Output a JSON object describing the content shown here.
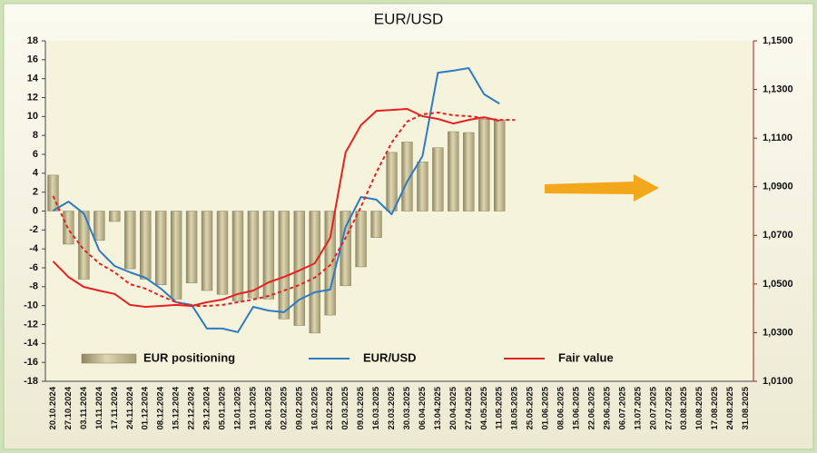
{
  "chart_data": {
    "type": "combo",
    "title": "EUR/USD",
    "categories": [
      "20.10.2024",
      "27.10.2024",
      "03.11.2024",
      "10.11.2024",
      "17.11.2024",
      "24.11.2024",
      "01.12.2024",
      "08.12.2024",
      "15.12.2024",
      "22.12.2024",
      "29.12.2024",
      "05.01.2025",
      "12.01.2025",
      "19.01.2025",
      "26.01.2025",
      "02.02.2025",
      "09.02.2025",
      "16.02.2025",
      "23.02.2025",
      "02.03.2025",
      "09.03.2025",
      "16.03.2025",
      "23.03.2025",
      "30.03.2025",
      "06.04.2025",
      "13.04.2025",
      "20.04.2025",
      "27.04.2025",
      "04.05.2025",
      "11.05.2025",
      "18.05.2025",
      "25.05.2025",
      "01.06.2025",
      "08.06.2025",
      "15.06.2025",
      "22.06.2025",
      "29.06.2025",
      "06.07.2025",
      "13.07.2025",
      "20.07.2025",
      "27.07.2025",
      "03.08.2025",
      "10.08.2025",
      "17.08.2025",
      "24.08.2025",
      "31.08.2025"
    ],
    "series": [
      {
        "name": "EUR positioning",
        "type": "bar",
        "color": "#c9c196",
        "values": [
          3.8,
          -3.5,
          -7.2,
          -3.1,
          -1.1,
          -6.1,
          -7.2,
          -7.8,
          -9.3,
          -7.6,
          -8.4,
          -8.8,
          -9.5,
          -9.2,
          -9.3,
          -11.4,
          -12.1,
          -12.9,
          -11.0,
          -7.9,
          -5.9,
          -2.8,
          6.2,
          7.3,
          5.2,
          6.7,
          8.4,
          8.3,
          9.7,
          9.6,
          null,
          null,
          null,
          null,
          null,
          null,
          null,
          null,
          null,
          null,
          null,
          null,
          null,
          null,
          null,
          null
        ]
      },
      {
        "name": "EUR/USD",
        "type": "line",
        "axis": "y2",
        "color": "#2e7bc4",
        "values": [
          1.0802,
          1.0839,
          1.079,
          1.0638,
          1.0574,
          1.0548,
          1.0526,
          1.0481,
          1.0425,
          1.0414,
          1.0317,
          1.0317,
          1.0302,
          1.0406,
          1.0391,
          1.0384,
          1.0436,
          1.0466,
          1.0477,
          1.0735,
          1.0858,
          1.0847,
          1.0787,
          1.0921,
          1.1026,
          1.1369,
          1.1377,
          1.1388,
          1.128,
          1.1242,
          null,
          null,
          null,
          null,
          null,
          null,
          null,
          null,
          null,
          null,
          null,
          null,
          null,
          null,
          null,
          null
        ]
      },
      {
        "name": "Fair value",
        "type": "line",
        "axis": "y2",
        "color": "#e52222",
        "values": [
          1.0593,
          1.0529,
          1.0488,
          1.0473,
          1.0459,
          1.0414,
          1.0406,
          1.041,
          1.0414,
          1.041,
          1.0425,
          1.0436,
          1.0459,
          1.0473,
          1.0507,
          1.0529,
          1.0556,
          1.0585,
          1.069,
          1.1041,
          1.1153,
          1.1212,
          1.1216,
          1.122,
          1.119,
          1.1179,
          1.116,
          1.1175,
          1.1186,
          1.1171,
          null,
          null,
          null,
          null,
          null,
          null,
          null,
          null,
          null,
          null,
          null,
          null,
          null,
          null,
          null,
          null
        ]
      },
      {
        "type": "line",
        "axis": "y2",
        "color": "#e52222",
        "dashed": true,
        "values": [
          1.0862,
          1.0724,
          1.0641,
          1.0585,
          1.0548,
          1.0499,
          1.0481,
          1.0451,
          1.0425,
          1.041,
          1.041,
          1.0414,
          1.0425,
          1.0436,
          1.0451,
          1.0473,
          1.0496,
          1.0526,
          1.0578,
          1.069,
          1.0817,
          1.0959,
          1.1082,
          1.1168,
          1.1198,
          1.1205,
          1.1194,
          1.119,
          1.1183,
          1.1175,
          1.1175,
          null,
          null,
          null,
          null,
          null,
          null,
          null,
          null,
          null,
          null,
          null,
          null,
          null,
          null,
          null
        ]
      }
    ],
    "ylim": [
      -18,
      18
    ],
    "yticks": [
      -18,
      -16,
      -14,
      -12,
      -10,
      -8,
      -6,
      -4,
      -2,
      0,
      2,
      4,
      6,
      8,
      10,
      12,
      14,
      16,
      18
    ],
    "y2lim": [
      1.01,
      1.15
    ],
    "y2ticks": [
      {
        "value": 1.01,
        "label": "1,0100"
      },
      {
        "value": 1.03,
        "label": "1,0300"
      },
      {
        "value": 1.05,
        "label": "1,0500"
      },
      {
        "value": 1.07,
        "label": "1,0700"
      },
      {
        "value": 1.09,
        "label": "1,0900"
      },
      {
        "value": 1.11,
        "label": "1,1100"
      },
      {
        "value": 1.13,
        "label": "1,1300"
      },
      {
        "value": 1.15,
        "label": "1,1500"
      }
    ],
    "grid": false
  }
}
